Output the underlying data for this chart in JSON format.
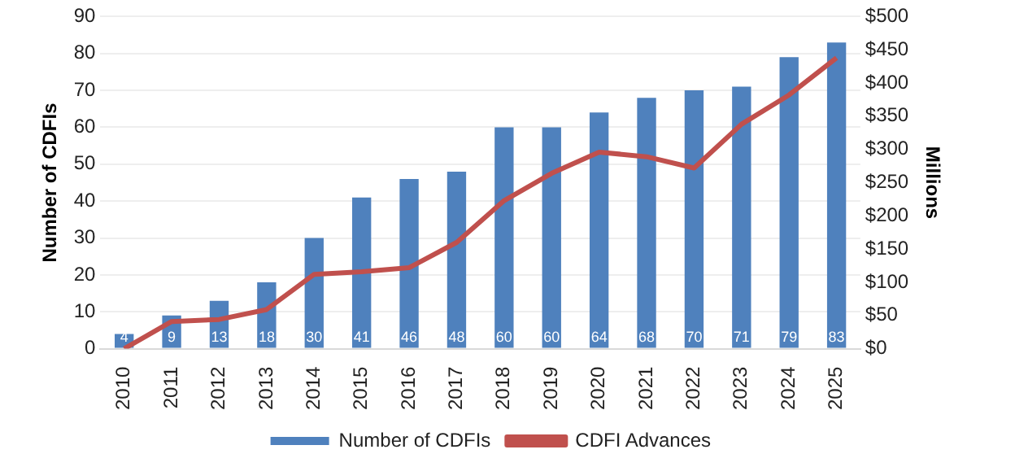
{
  "chart_data": {
    "type": "bar",
    "ylabel": "Number of CDFIs",
    "y2label": "Millions",
    "categories": [
      "2010",
      "2011",
      "2012",
      "2013",
      "2014",
      "2015",
      "2016",
      "2017",
      "2018",
      "2019",
      "2020",
      "2021",
      "2022",
      "2023",
      "2024",
      "2025"
    ],
    "series": [
      {
        "name": "Number of CDFIs",
        "color": "#4f81bd",
        "values": [
          4,
          9,
          13,
          18,
          30,
          41,
          46,
          48,
          60,
          60,
          64,
          68,
          70,
          71,
          79,
          83
        ],
        "value_labels": [
          "4",
          "9",
          "13",
          "18",
          "30",
          "41",
          "46",
          "48",
          "60",
          "60",
          "64",
          "68",
          "70",
          "71",
          "79",
          "83"
        ]
      },
      {
        "name": "CDFI Advances",
        "type": "line",
        "axis": "y2",
        "color": "#c0504d",
        "values": [
          0,
          41,
          44,
          59,
          112,
          116,
          122,
          160,
          223,
          264,
          296,
          289,
          272,
          338,
          382,
          438
        ]
      }
    ],
    "ylim": [
      0,
      90
    ],
    "yticks": [
      0,
      10,
      20,
      30,
      40,
      50,
      60,
      70,
      80,
      90
    ],
    "y2lim": [
      0,
      500
    ],
    "y2ticks": [
      {
        "value": 0,
        "label": "$0"
      },
      {
        "value": 50,
        "label": "$50"
      },
      {
        "value": 100,
        "label": "$100"
      },
      {
        "value": 150,
        "label": "$150"
      },
      {
        "value": 200,
        "label": "$200"
      },
      {
        "value": 250,
        "label": "$250"
      },
      {
        "value": 300,
        "label": "$300"
      },
      {
        "value": 350,
        "label": "$350"
      },
      {
        "value": 400,
        "label": "$400"
      },
      {
        "value": 450,
        "label": "$450"
      },
      {
        "value": 500,
        "label": "$500"
      }
    ],
    "grid": "y",
    "legend": "bottom",
    "marker": "none",
    "line_style": "solid"
  }
}
